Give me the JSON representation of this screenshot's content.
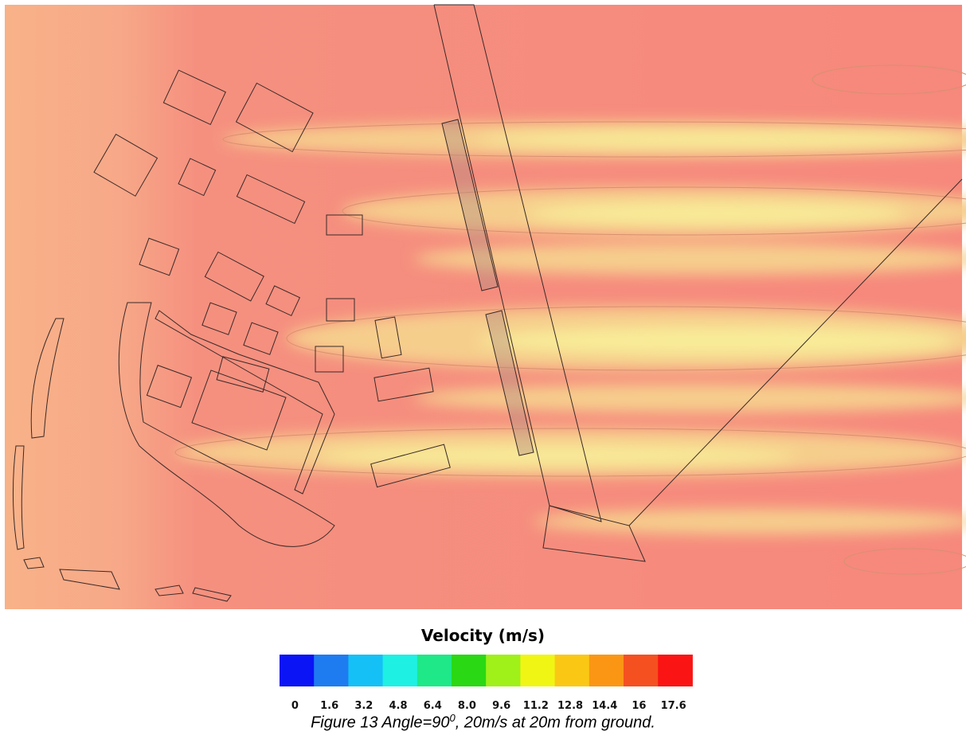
{
  "figure": {
    "legend": {
      "title": "Velocity (m/s)",
      "colors": [
        "#0a14f5",
        "#1e7cf0",
        "#14c0f5",
        "#1ef0e4",
        "#1ee888",
        "#2ad814",
        "#a0f01a",
        "#f0f514",
        "#fac814",
        "#fa9614",
        "#f55020",
        "#fa1414"
      ],
      "labels": [
        "0",
        "1.6",
        "3.2",
        "4.8",
        "6.4",
        "8.0",
        "9.6",
        "11.2",
        "12.8",
        "14.4",
        "16",
        "17.6"
      ]
    },
    "caption": {
      "text": "Figure 13 Angle=90",
      "superscript": "0",
      "rest": ", 20m/s at 20m from ground."
    }
  }
}
